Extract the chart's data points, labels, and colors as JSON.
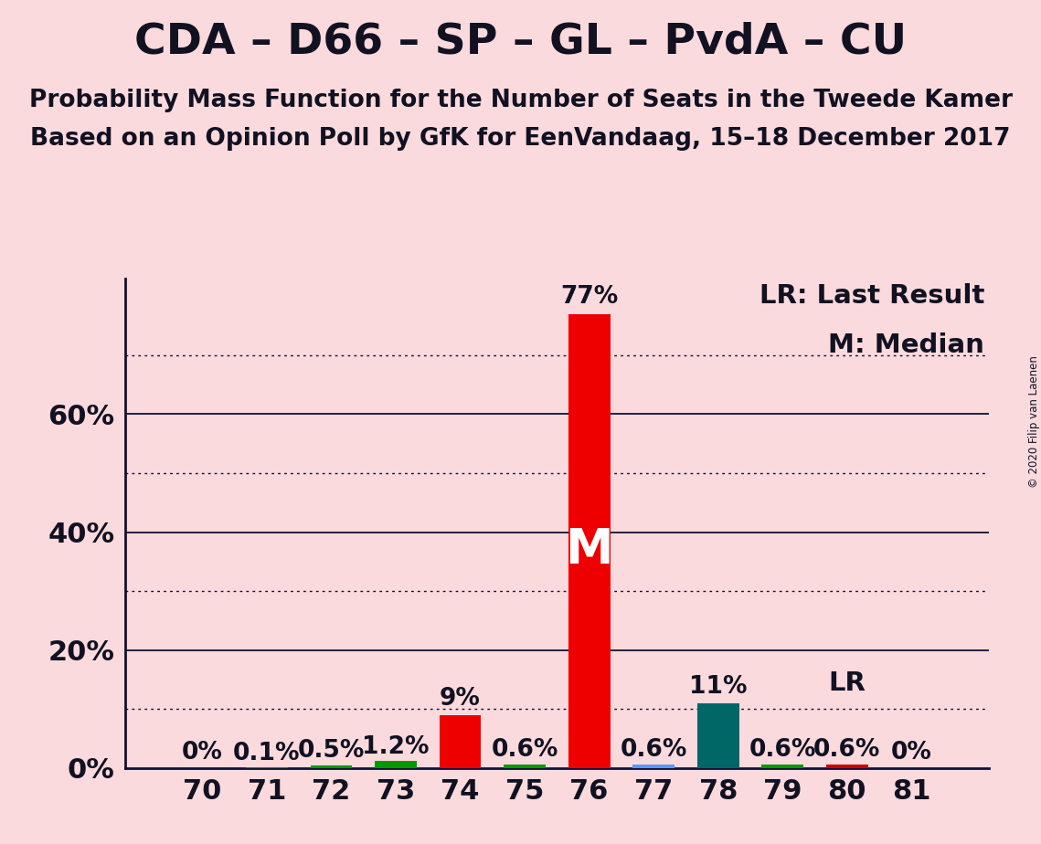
{
  "title": "CDA – D66 – SP – GL – PvdA – CU",
  "subtitle1": "Probability Mass Function for the Number of Seats in the Tweede Kamer",
  "subtitle2": "Based on an Opinion Poll by GfK for EenVandaag, 15–18 December 2017",
  "copyright": "© 2020 Filip van Laenen",
  "background_color": "#FADADD",
  "seats": [
    70,
    71,
    72,
    73,
    74,
    75,
    76,
    77,
    78,
    79,
    80,
    81
  ],
  "values": [
    0.0,
    0.1,
    0.5,
    1.2,
    9.0,
    0.6,
    77.0,
    0.6,
    11.0,
    0.6,
    0.6,
    0.0
  ],
  "bar_colors": [
    "#009900",
    "#009900",
    "#009900",
    "#009900",
    "#EE0000",
    "#009900",
    "#EE0000",
    "#5599FF",
    "#006666",
    "#009900",
    "#CC0000",
    "#CC0000"
  ],
  "labels": [
    "0%",
    "0.1%",
    "0.5%",
    "1.2%",
    "9%",
    "0.6%",
    "77%",
    "0.6%",
    "11%",
    "0.6%",
    "0.6%",
    "0%"
  ],
  "median_seat": 76,
  "lr_seat": 80,
  "ylim_max": 83,
  "ytick_positions": [
    0,
    20,
    40,
    60
  ],
  "ytick_labels": [
    "0%",
    "20%",
    "40%",
    "60%"
  ],
  "solid_gridlines": [
    20,
    40,
    60
  ],
  "dotted_gridlines": [
    10,
    30,
    50,
    70
  ],
  "bar_width": 0.65,
  "title_fontsize": 34,
  "subtitle_fontsize": 19,
  "label_fontsize": 19,
  "axis_fontsize": 22,
  "legend_fontsize": 21,
  "M_fontsize": 38,
  "LR_fontsize": 21
}
